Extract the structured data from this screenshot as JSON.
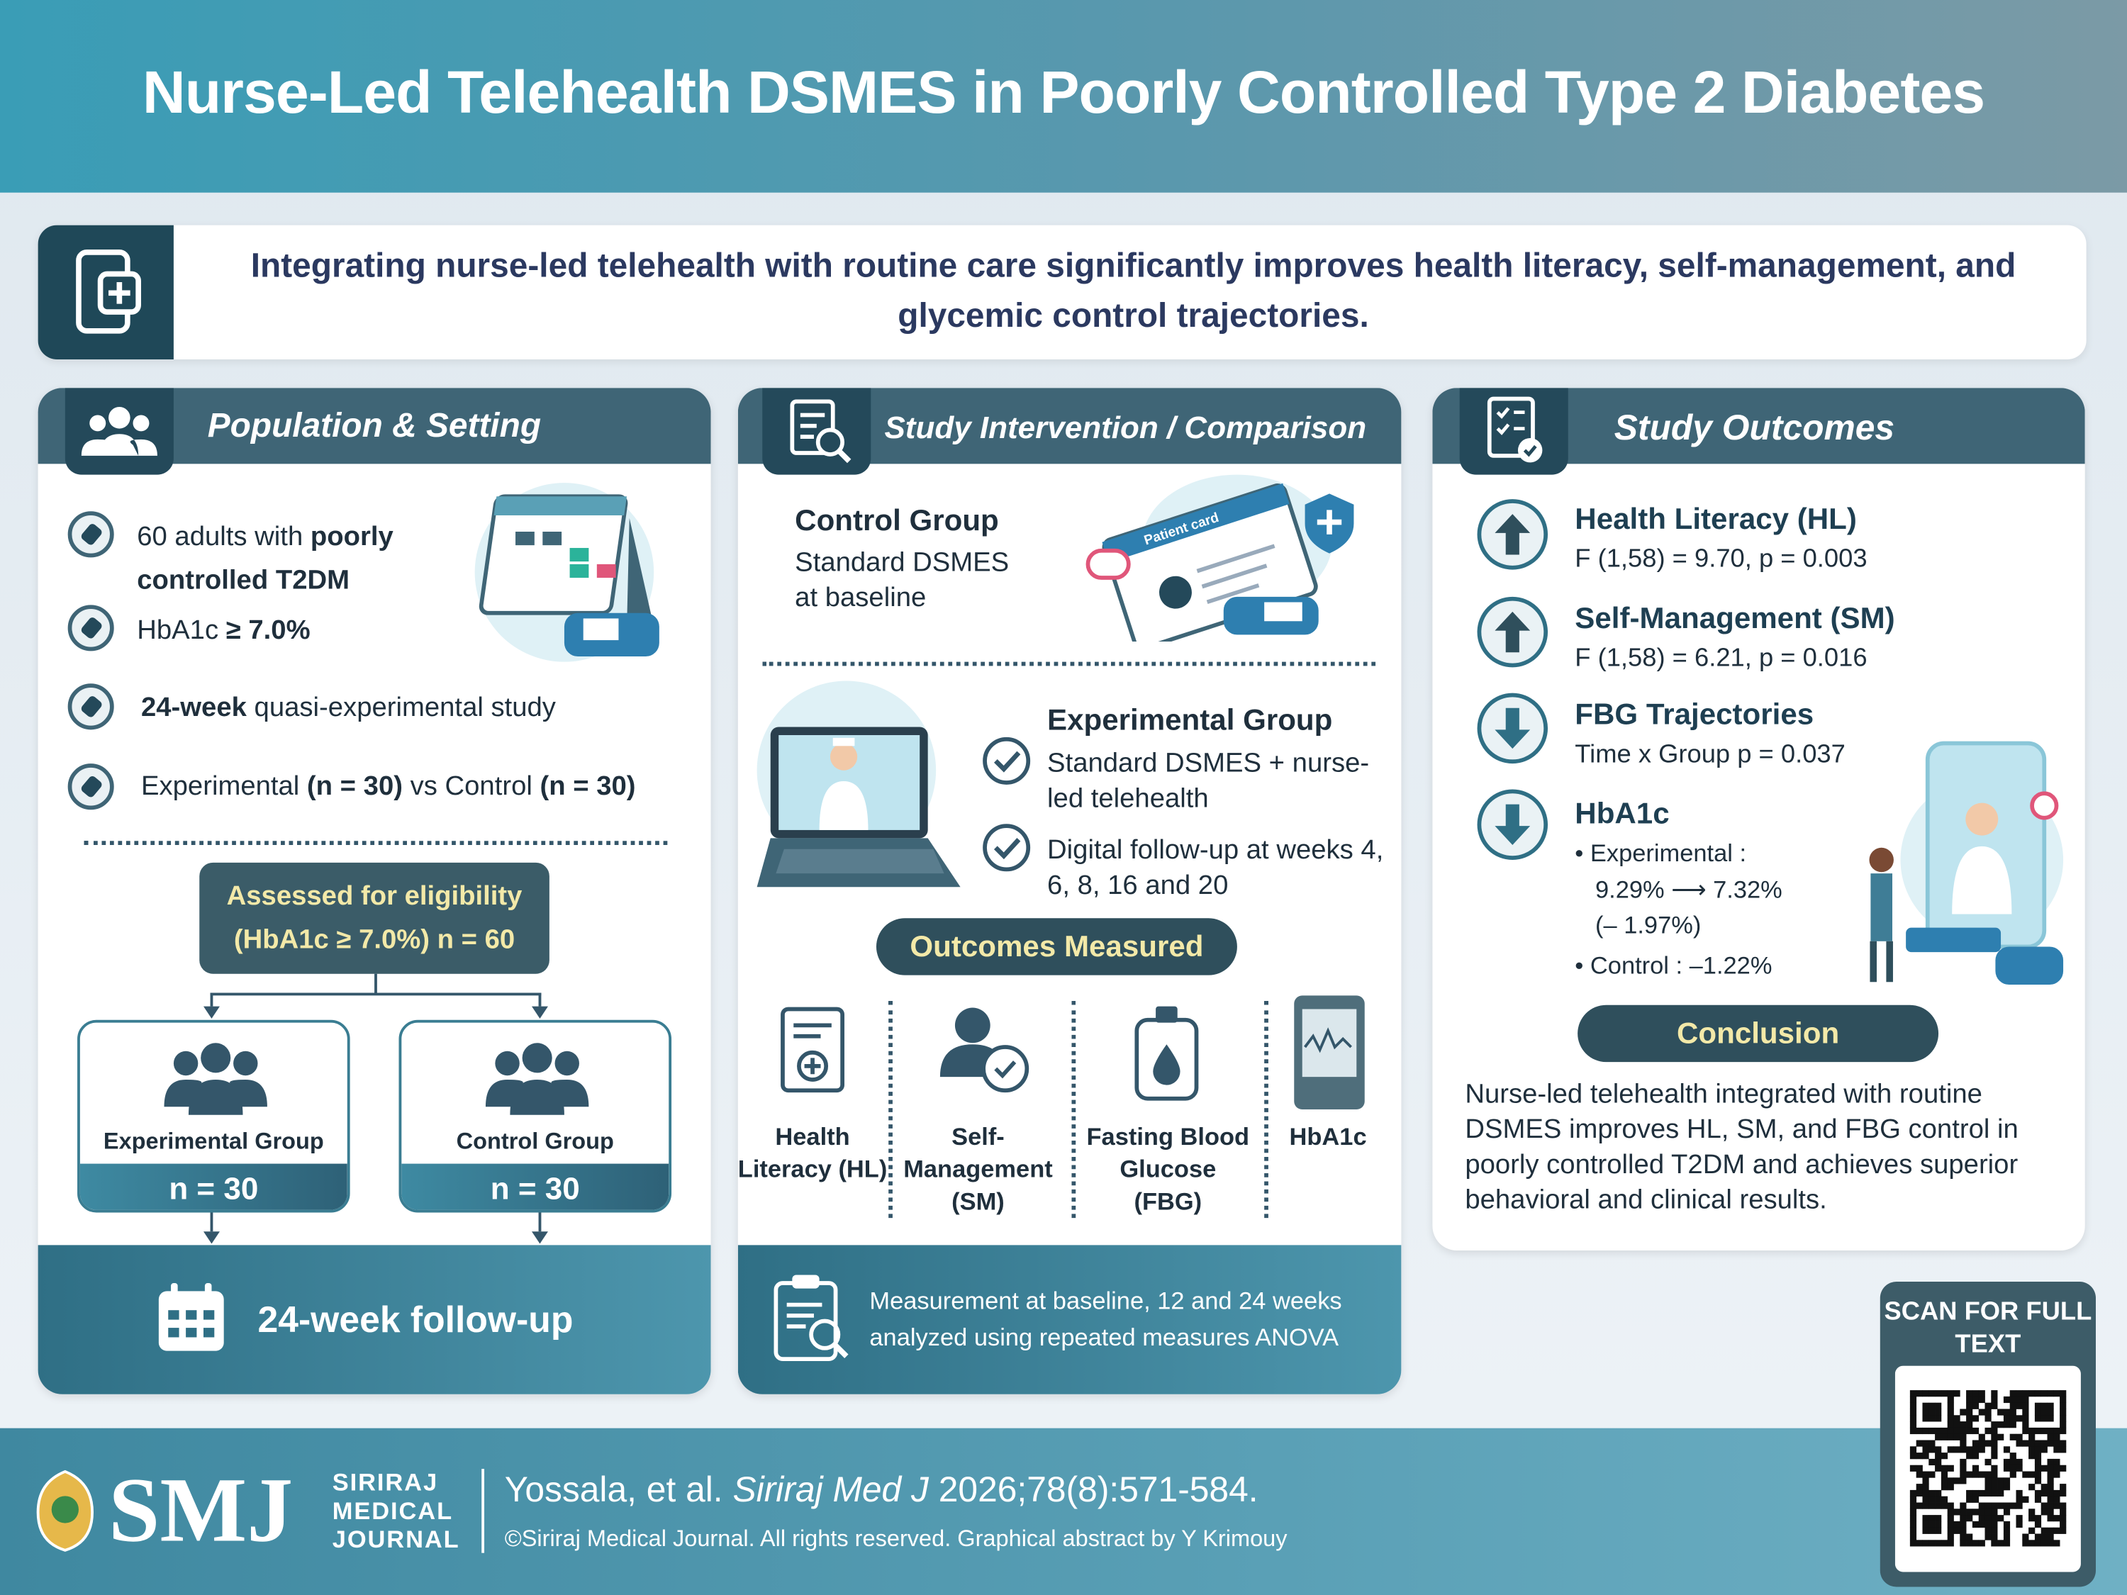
{
  "header": {
    "title": "Nurse-Led Telehealth DSMES in Poorly Controlled Type 2 Diabetes"
  },
  "key_message": "Integrating nurse-led telehealth with routine care significantly improves health literacy, self-management, and glycemic control trajectories.",
  "population": {
    "title": "Population & Setting",
    "items": [
      [
        "60 adults with",
        "poorly controlled T2DM"
      ],
      [
        "HbA1c",
        "≥ 7.0%"
      ],
      [
        "24-week",
        "quasi-experimental study"
      ],
      [
        "Experimental",
        "(n = 30)",
        "vs Control",
        "(n = 30)"
      ]
    ]
  },
  "flow": {
    "eligibility": [
      "Assessed for eligibility",
      "(HbA1c ≥ 7.0%) n = 60"
    ],
    "groups": [
      {
        "label": "Experimental Group",
        "n": "n = 30"
      },
      {
        "label": "Control Group",
        "n": "n = 30"
      }
    ],
    "follow_up": "24-week follow-up"
  },
  "intervention": {
    "title": "Study Intervention / Comparison",
    "control": {
      "title": "Control Group",
      "text": "Standard DSMES at baseline"
    },
    "illustration_label": "Patient card",
    "experimental": {
      "title": "Experimental Group",
      "items": [
        "Standard DSMES + nurse-led telehealth",
        "Digital follow-up at weeks 4, 6, 8, 16 and 20"
      ]
    },
    "outcomes_title": "Outcomes Measured",
    "outcomes": [
      "Health Literacy (HL)",
      "Self-Management (SM)",
      "Fasting Blood Glucose (FBG)",
      "HbA1c"
    ],
    "measurement": "Measurement at baseline, 12 and 24 weeks analyzed using repeated measures ANOVA"
  },
  "outcomes": {
    "title": "Study Outcomes",
    "results": [
      {
        "name": "Health Literacy (HL)",
        "stat": "F (1,58) = 9.70, p = 0.003"
      },
      {
        "name": "Self-Management (SM)",
        "stat": "F (1,58) = 6.21, p = 0.016"
      },
      {
        "name": "FBG Trajectories",
        "stat": "Time x Group p = 0.037"
      }
    ],
    "hba1c": {
      "name": "HbA1c",
      "details": [
        "• Experimental :",
        "9.29% ⟶ 7.32%",
        "(– 1.97%)",
        "• Control : –1.22%"
      ]
    },
    "conclusion": {
      "title": "Conclusion",
      "text": "Nurse-led telehealth integrated with routine DSMES improves HL, SM, and FBG control in poorly controlled T2DM and achieves superior behavioral and clinical results."
    }
  },
  "qr": {
    "caption": "SCAN FOR FULL TEXT"
  },
  "footer": {
    "logo": "SMJ",
    "journal_name": [
      "SIRIRAJ",
      "MEDICAL",
      "JOURNAL"
    ],
    "citation": [
      "Yossala, et al.",
      "Siriraj Med J",
      "2026;78(8):571-584."
    ],
    "copyright": "©Siriraj Medical Journal. All rights reserved. Graphical abstract by Y Krimouy"
  }
}
